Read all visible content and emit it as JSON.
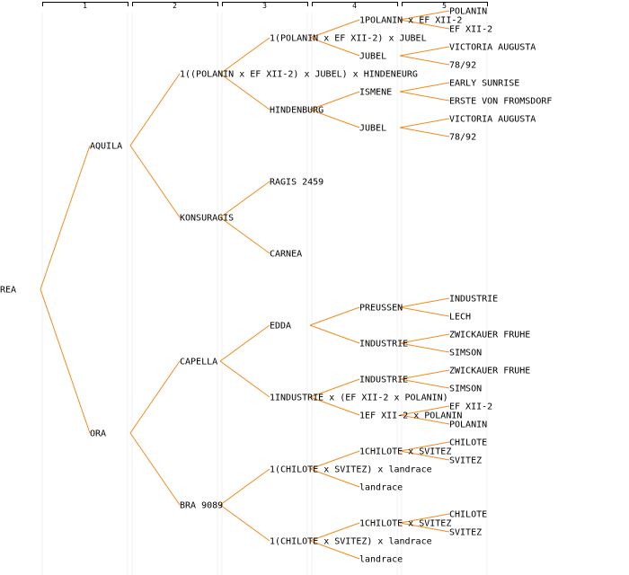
{
  "colors": {
    "link": "#f08c1e",
    "guide": "#f0f0f0",
    "bracket": "#000000",
    "text": "#000000"
  },
  "generations": [
    "1",
    "2",
    "3",
    "4",
    "5"
  ],
  "tree": {
    "label": "REA",
    "children": [
      {
        "label": "AQUILA",
        "children": [
          {
            "label": "1((POLANIN x EF XII-2) x JUBEL) x HINDENEURG",
            "children": [
              {
                "label": "1(POLANIN x EF XII-2) x JUBEL",
                "children": [
                  {
                    "label": "1POLANIN x EF XII-2",
                    "children": [
                      {
                        "label": "POLANIN"
                      },
                      {
                        "label": "EF XII-2"
                      }
                    ]
                  },
                  {
                    "label": "JUBEL",
                    "children": [
                      {
                        "label": "VICTORIA AUGUSTA"
                      },
                      {
                        "label": "78/92"
                      }
                    ]
                  }
                ]
              },
              {
                "label": "HINDENBURG",
                "children": [
                  {
                    "label": "ISMENE",
                    "children": [
                      {
                        "label": "EARLY SUNRISE"
                      },
                      {
                        "label": "ERSTE VON FROMSDORF"
                      }
                    ]
                  },
                  {
                    "label": "JUBEL",
                    "children": [
                      {
                        "label": "VICTORIA AUGUSTA"
                      },
                      {
                        "label": "78/92"
                      }
                    ]
                  }
                ]
              }
            ]
          },
          {
            "label": "KONSURAGIS",
            "children": [
              {
                "label": "RAGIS 2459"
              },
              {
                "label": "CARNEA"
              }
            ]
          }
        ]
      },
      {
        "label": "ORA",
        "children": [
          {
            "label": "CAPELLA",
            "children": [
              {
                "label": "EDDA",
                "children": [
                  {
                    "label": "PREUSSEN",
                    "children": [
                      {
                        "label": "INDUSTRIE"
                      },
                      {
                        "label": "LECH"
                      }
                    ]
                  },
                  {
                    "label": "INDUSTRIE",
                    "children": [
                      {
                        "label": "ZWICKAUER FRUHE"
                      },
                      {
                        "label": "SIMSON"
                      }
                    ]
                  }
                ]
              },
              {
                "label": "1INDUSTRIE x (EF XII-2 x POLANIN)",
                "children": [
                  {
                    "label": "INDUSTRIE",
                    "children": [
                      {
                        "label": "ZWICKAUER FRUHE"
                      },
                      {
                        "label": "SIMSON"
                      }
                    ]
                  },
                  {
                    "label": "1EF XII-2 x POLANIN",
                    "children": [
                      {
                        "label": "EF XII-2"
                      },
                      {
                        "label": "POLANIN"
                      }
                    ]
                  }
                ]
              }
            ]
          },
          {
            "label": "BRA 9089",
            "children": [
              {
                "label": "1(CHILOTE x SVITEZ) x landrace",
                "children": [
                  {
                    "label": "1CHILOTE x SVITEZ",
                    "children": [
                      {
                        "label": "CHILOTE"
                      },
                      {
                        "label": "SVITEZ"
                      }
                    ]
                  },
                  {
                    "label": "landrace"
                  }
                ]
              },
              {
                "label": "1(CHILOTE x SVITEZ) x landrace",
                "children": [
                  {
                    "label": "1CHILOTE x SVITEZ",
                    "children": [
                      {
                        "label": "CHILOTE"
                      },
                      {
                        "label": "SVITEZ"
                      }
                    ]
                  },
                  {
                    "label": "landrace"
                  }
                ]
              }
            ]
          }
        ]
      }
    ]
  }
}
